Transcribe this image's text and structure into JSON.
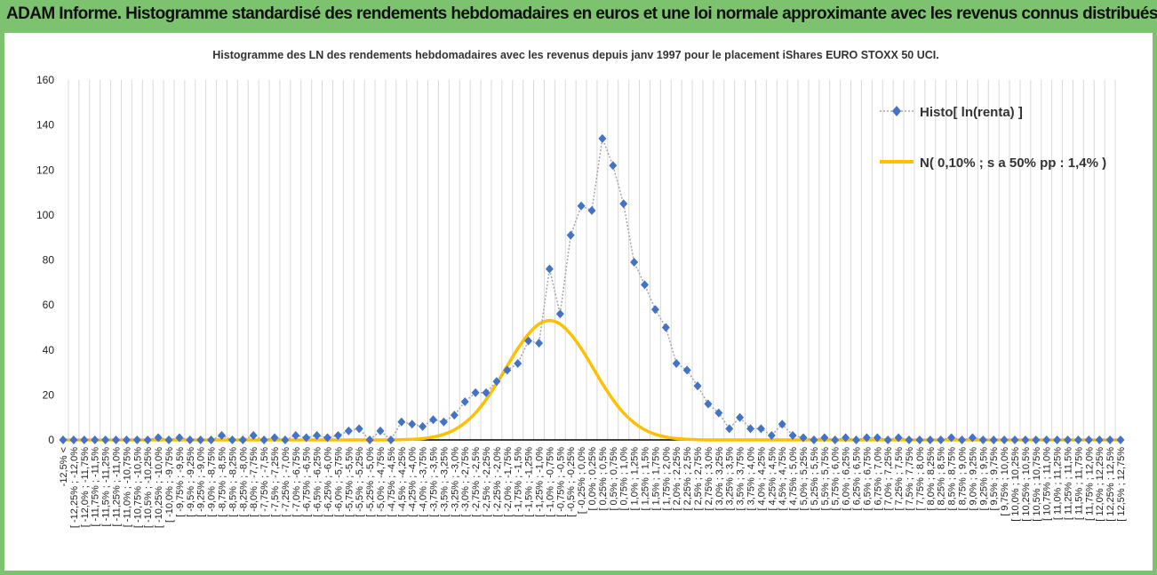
{
  "header": {
    "title": "ADAM Informe. Histogramme standardisé des rendements hebdomadaires en euros et une loi normale approximante avec les revenus connus distribués"
  },
  "colors": {
    "frame": "#7dc26e",
    "histo": "#4472c4",
    "normal": "#ffc000",
    "grid": "#d9d9d9"
  },
  "chart_data": {
    "type": "line",
    "title": "Histogramme des LN des rendements hebdomadaires avec les revenus depuis janv 1997 pour le placement iShares EURO STOXX 50 UCI.",
    "ylim": [
      0,
      160
    ],
    "yticks": [
      0,
      20,
      40,
      60,
      80,
      100,
      120,
      140,
      160
    ],
    "grid": "vertical",
    "legend_position": "top-right",
    "categories": [
      "-12,5% <",
      "[ -12,25% ; -12,0%",
      "[ -12,0% ; -11,75%",
      "[ -11,75% ; -11,5%",
      "[ -11,5% ; -11,25%",
      "[ -11,25% ; -11,0%",
      "[ -11,0% ; -10,75%",
      "[ -10,75% ; -10,5%",
      "[ -10,5% ; -10,25%",
      "[ -10,25% ; -10,0%",
      "[ -10,0% ; -9,75%",
      "[ -9,75% ; -9,5%",
      "[ -9,5% ; -9,25%",
      "[ -9,25% ; -9,0%",
      "[ -9,0% ; -8,75%",
      "[ -8,75% ; -8,5%",
      "[ -8,5% ; -8,25%",
      "[ -8,25% ; -8,0%",
      "[ -8,0% ; -7,75%",
      "[ -7,75% ; -7,5%",
      "[ -7,5% ; -7,25%",
      "[ -7,25% ; -7,0%",
      "[ -7,0% ; -6,75%",
      "[ -6,75% ; -6,5%",
      "[ -6,5% ; -6,25%",
      "[ -6,25% ; -6,0%",
      "[ -6,0% ; -5,75%",
      "[ -5,75% ; -5,5%",
      "[ -5,5% ; -5,25%",
      "[ -5,25% ; -5,0%",
      "[ -5,0% ; -4,75%",
      "[ -4,75% ; -4,5%",
      "[ -4,5% ; -4,25%",
      "[ -4,25% ; -4,0%",
      "[ -4,0% ; -3,75%",
      "[ -3,75% ; -3,5%",
      "[ -3,5% ; -3,25%",
      "[ -3,25% ; -3,0%",
      "[ -3,0% ; -2,75%",
      "[ -2,75% ; -2,5%",
      "[ -2,5% ; -2,25%",
      "[ -2,25% ; -2,0%",
      "[ -2,0% ; -1,75%",
      "[ -1,75% ; -1,5%",
      "[ -1,5% ; -1,25%",
      "[ -1,25% ; -1,0%",
      "[ -1,0% ; -0,75%",
      "[ -0,75% ; -0,5%",
      "[ -0,5% ; -0,25%",
      "[ -0,25% ; 0,0%",
      "[ 0,0% ; 0,25%",
      "[ 0,25% ; 0,5%",
      "[ 0,5% ; 0,75%",
      "[ 0,75% ; 1,0%",
      "[ 1,0% ; 1,25%",
      "[ 1,25% ; 1,5%",
      "[ 1,5% ; 1,75%",
      "[ 1,75% ; 2,0%",
      "[ 2,0% ; 2,25%",
      "[ 2,25% ; 2,5%",
      "[ 2,5% ; 2,75%",
      "[ 2,75% ; 3,0%",
      "[ 3,0% ; 3,25%",
      "[ 3,25% ; 3,5%",
      "[ 3,5% ; 3,75%",
      "[ 3,75% ; 4,0%",
      "[ 4,0% ; 4,25%",
      "[ 4,25% ; 4,5%",
      "[ 4,5% ; 4,75%",
      "[ 4,75% ; 5,0%",
      "[ 5,0% ; 5,25%",
      "[ 5,25% ; 5,5%",
      "[ 5,5% ; 5,75%",
      "[ 5,75% ; 6,0%",
      "[ 6,0% ; 6,25%",
      "[ 6,25% ; 6,5%",
      "[ 6,5% ; 6,75%",
      "[ 6,75% ; 7,0%",
      "[ 7,0% ; 7,25%",
      "[ 7,25% ; 7,5%",
      "[ 7,5% ; 7,75%",
      "[ 7,75% ; 8,0%",
      "[ 8,0% ; 8,25%",
      "[ 8,25% ; 8,5%",
      "[ 8,5% ; 8,75%",
      "[ 8,75% ; 9,0%",
      "[ 9,0% ; 9,25%",
      "[ 9,25% ; 9,5%",
      "[ 9,5% ; 9,75%",
      "[ 9,75% ; 10,0%",
      "[ 10,0% ; 10,25%",
      "[ 10,25% ; 10,5%",
      "[ 10,5% ; 10,75%",
      "[ 10,75% ; 11,0%",
      "[ 11,0% ; 11,25%",
      "[ 11,25% ; 11,5%",
      "[ 11,5% ; 11,75%",
      "[ 11,75% ; 12,0%",
      "[ 12,0% ; 12,25%",
      "[ 12,25% ; 12,5%",
      "[ 12,5% ; 12,75%"
    ],
    "series": [
      {
        "name": "Histo[ ln(renta) ]",
        "style": "dotted-line-diamond-markers",
        "values": [
          0,
          0,
          0,
          0,
          0,
          0,
          0,
          0,
          0,
          1,
          0,
          1,
          0,
          0,
          0,
          2,
          0,
          0,
          2,
          0,
          1,
          0,
          2,
          1,
          2,
          1,
          2,
          4,
          5,
          0,
          4,
          0,
          8,
          7,
          6,
          9,
          8,
          11,
          17,
          21,
          21,
          26,
          31,
          34,
          44,
          43,
          76,
          56,
          91,
          104,
          102,
          134,
          122,
          105,
          79,
          69,
          58,
          50,
          34,
          31,
          24,
          16,
          12,
          5,
          10,
          5,
          5,
          2,
          7,
          2,
          1,
          0,
          1,
          0,
          1,
          0,
          1,
          1,
          0,
          1,
          0,
          0,
          0,
          0,
          1,
          0,
          1,
          0,
          0,
          0,
          0,
          0,
          0,
          0,
          0,
          0,
          0,
          0,
          0,
          0,
          0
        ]
      },
      {
        "name": "N( 0,10% ; s a 50% pp : 1,4% )",
        "style": "solid-line",
        "values": [
          0,
          0,
          0,
          0,
          0,
          0,
          0,
          0,
          0,
          0,
          0,
          0,
          0,
          0,
          0,
          0,
          0,
          0,
          0,
          0,
          0,
          0,
          0,
          0,
          0,
          0,
          0,
          0,
          0,
          0,
          0,
          0,
          0.1,
          0.3,
          0.6,
          1.3,
          2.5,
          4.5,
          7.6,
          12,
          17.9,
          25,
          32.9,
          40.6,
          47,
          51.5,
          53.1,
          51.5,
          47,
          40.6,
          32.9,
          25,
          17.9,
          12,
          7.6,
          4.5,
          2.5,
          1.3,
          0.6,
          0.3,
          0.1,
          0,
          0,
          0,
          0,
          0,
          0,
          0,
          0,
          0,
          0,
          0,
          0,
          0,
          0,
          0,
          0,
          0,
          0,
          0,
          0,
          0,
          0,
          0,
          0,
          0,
          0,
          0,
          0,
          0,
          0,
          0,
          0,
          0,
          0,
          0,
          0,
          0,
          0,
          0,
          0
        ]
      }
    ]
  }
}
